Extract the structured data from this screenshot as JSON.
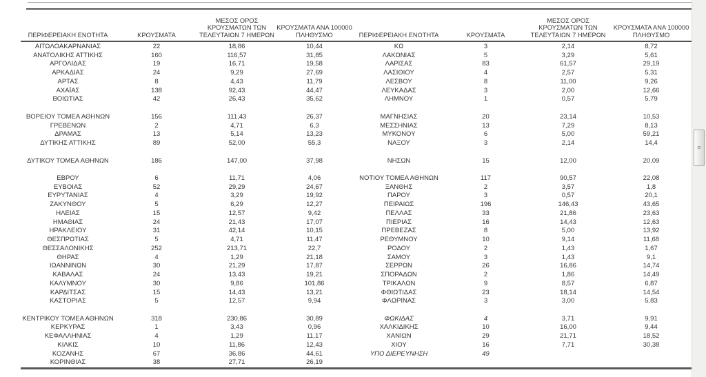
{
  "table": {
    "headers": {
      "region": "ΠΕΡΙΦΕΡΕΙΑΚΗ ΕΝΟΤΗΤΑ",
      "cases": "ΚΡΟΥΣΜΑΤΑ",
      "avg7": "ΜΕΣΟΣ ΟΡΟΣ\nΚΡΟΥΣΜΑΤΩΝ ΤΩΝ\nΤΕΛΕΥΤΑΙΩΝ 7 ΗΜΕΡΩΝ",
      "per100k": "ΚΡΟΥΣΜΑΤΑ ΑΝΑ 100000\nΠΛΗΘΥΣΜΟ"
    },
    "rows": [
      {
        "left": [
          "ΑΙΤΩΛΟΑΚΑΡΝΑΝΙΑΣ",
          "22",
          "18,86",
          "10,44"
        ],
        "right": [
          "ΚΩ",
          "3",
          "2,14",
          "8,72"
        ]
      },
      {
        "left": [
          "ΑΝΑΤΟΛΙΚΗΣ ΑΤΤΙΚΗΣ",
          "160",
          "116,57",
          "31,85"
        ],
        "right": [
          "ΛΑΚΩΝΙΑΣ",
          "5",
          "3,29",
          "5,61"
        ]
      },
      {
        "left": [
          "ΑΡΓΟΛΙΔΑΣ",
          "19",
          "16,71",
          "19,58"
        ],
        "right": [
          "ΛΑΡΙΣΑΣ",
          "83",
          "61,57",
          "29,19"
        ]
      },
      {
        "left": [
          "ΑΡΚΑΔΙΑΣ",
          "24",
          "9,29",
          "27,69"
        ],
        "right": [
          "ΛΑΣΙΘΙΟΥ",
          "4",
          "2,57",
          "5,31"
        ]
      },
      {
        "left": [
          "ΑΡΤΑΣ",
          "8",
          "4,43",
          "11,79"
        ],
        "right": [
          "ΛΕΣΒΟΥ",
          "8",
          "11,00",
          "9,26"
        ]
      },
      {
        "left": [
          "ΑΧΑΪΑΣ",
          "138",
          "92,43",
          "44,47"
        ],
        "right": [
          "ΛΕΥΚΑΔΑΣ",
          "3",
          "2,00",
          "12,66"
        ]
      },
      {
        "left": [
          "ΒΟΙΩΤΙΑΣ",
          "42",
          "26,43",
          "35,62"
        ],
        "right": [
          "ΛΗΜΝΟΥ",
          "1",
          "0,57",
          "5,79"
        ]
      },
      {
        "left": [
          "",
          "",
          "",
          ""
        ],
        "right": [
          "",
          "",
          "",
          ""
        ]
      },
      {
        "left": [
          "ΒΟΡΕΙΟΥ ΤΟΜΕΑ ΑΘΗΝΩΝ",
          "156",
          "111,43",
          "26,37"
        ],
        "right": [
          "ΜΑΓΝΗΣΙΑΣ",
          "20",
          "23,14",
          "10,53"
        ]
      },
      {
        "left": [
          "ΓΡΕΒΕΝΩΝ",
          "2",
          "4,71",
          "6,3"
        ],
        "right": [
          "ΜΕΣΣΗΝΙΑΣ",
          "13",
          "7,29",
          "8,13"
        ]
      },
      {
        "left": [
          "ΔΡΑΜΑΣ",
          "13",
          "5,14",
          "13,23"
        ],
        "right": [
          "ΜΥΚΟΝΟΥ",
          "6",
          "5,00",
          "59,21"
        ]
      },
      {
        "left": [
          "ΔΥΤΙΚΗΣ ΑΤΤΙΚΗΣ",
          "89",
          "52,00",
          "55,3"
        ],
        "right": [
          "ΝΑΞΟΥ",
          "3",
          "2,14",
          "14,4"
        ]
      },
      {
        "left": [
          "",
          "",
          "",
          ""
        ],
        "right": [
          "",
          "",
          "",
          ""
        ]
      },
      {
        "left": [
          "ΔΥΤΙΚΟΥ ΤΟΜΕΑ ΑΘΗΝΩΝ",
          "186",
          "147,00",
          "37,98"
        ],
        "right": [
          "ΝΗΣΩΝ",
          "15",
          "12,00",
          "20,09"
        ]
      },
      {
        "left": [
          "",
          "",
          "",
          ""
        ],
        "right": [
          "",
          "",
          "",
          ""
        ]
      },
      {
        "left": [
          "ΕΒΡΟΥ",
          "6",
          "11,71",
          "4,06"
        ],
        "right": [
          "ΝΟΤΙΟΥ ΤΟΜΕΑ ΑΘΗΝΩΝ",
          "117",
          "90,57",
          "22,08"
        ]
      },
      {
        "left": [
          "ΕΥΒΟΙΑΣ",
          "52",
          "29,29",
          "24,67"
        ],
        "right": [
          "ΞΑΝΘΗΣ",
          "2",
          "3,57",
          "1,8"
        ]
      },
      {
        "left": [
          "ΕΥΡΥΤΑΝΙΑΣ",
          "4",
          "3,29",
          "19,92"
        ],
        "right": [
          "ΠΑΡΟΥ",
          "3",
          "0,57",
          "20,1"
        ]
      },
      {
        "left": [
          "ΖΑΚΥΝΘΟΥ",
          "5",
          "6,29",
          "12,27"
        ],
        "right": [
          "ΠΕΙΡΑΙΩΣ",
          "196",
          "146,43",
          "43,65"
        ]
      },
      {
        "left": [
          "ΗΛΕΙΑΣ",
          "15",
          "12,57",
          "9,42"
        ],
        "right": [
          "ΠΕΛΛΑΣ",
          "33",
          "21,86",
          "23,63"
        ]
      },
      {
        "left": [
          "ΗΜΑΘΙΑΣ",
          "24",
          "21,43",
          "17,07"
        ],
        "right": [
          "ΠΙΕΡΙΑΣ",
          "16",
          "14,43",
          "12,63"
        ]
      },
      {
        "left": [
          "ΗΡΑΚΛΕΙΟΥ",
          "31",
          "42,14",
          "10,15"
        ],
        "right": [
          "ΠΡΕΒΕΖΑΣ",
          "8",
          "5,00",
          "13,92"
        ]
      },
      {
        "left": [
          "ΘΕΣΠΡΩΤΙΑΣ",
          "5",
          "4,71",
          "11,47"
        ],
        "right": [
          "ΡΕΘΥΜΝΟΥ",
          "10",
          "9,14",
          "11,68"
        ]
      },
      {
        "left": [
          "ΘΕΣΣΑΛΟΝΙΚΗΣ",
          "252",
          "213,71",
          "22,7"
        ],
        "right": [
          "ΡΟΔΟΥ",
          "2",
          "1,43",
          "1,67"
        ]
      },
      {
        "left": [
          "ΘΗΡΑΣ",
          "4",
          "1,29",
          "21,18"
        ],
        "right": [
          "ΣΑΜΟΥ",
          "3",
          "1,43",
          "9,1"
        ]
      },
      {
        "left": [
          "ΙΩΑΝΝΙΝΩΝ",
          "30",
          "21,29",
          "17,87"
        ],
        "right": [
          "ΣΕΡΡΩΝ",
          "26",
          "16,86",
          "14,74"
        ]
      },
      {
        "left": [
          "ΚΑΒΑΛΑΣ",
          "24",
          "13,43",
          "19,21"
        ],
        "right": [
          "ΣΠΟΡΑΔΩΝ",
          "2",
          "1,86",
          "14,49"
        ]
      },
      {
        "left": [
          "ΚΑΛΥΜΝΟΥ",
          "30",
          "9,86",
          "101,86"
        ],
        "right": [
          "ΤΡΙΚΑΛΩΝ",
          "9",
          "8,57",
          "6,87"
        ]
      },
      {
        "left": [
          "ΚΑΡΔΙΤΣΑΣ",
          "15",
          "14,43",
          "13,21"
        ],
        "right": [
          "ΦΘΙΩΤΙΔΑΣ",
          "23",
          "18,14",
          "14,54"
        ]
      },
      {
        "left": [
          "ΚΑΣΤΟΡΙΑΣ",
          "5",
          "12,57",
          "9,94"
        ],
        "right": [
          "ΦΛΩΡΙΝΑΣ",
          "3",
          "3,00",
          "5,83"
        ]
      },
      {
        "left": [
          "",
          "",
          "",
          ""
        ],
        "right": [
          "",
          "",
          "",
          ""
        ]
      },
      {
        "left": [
          "ΚΕΝΤΡΙΚΟΥ ΤΟΜΕΑ ΑΘΗΝΩΝ",
          "318",
          "230,86",
          "30,89"
        ],
        "right": [
          "ΦΩΚΙΔΑΣ",
          "4",
          "3,71",
          "9,91"
        ],
        "right_italic": true
      },
      {
        "left": [
          "ΚΕΡΚΥΡΑΣ",
          "1",
          "3,43",
          "0,96"
        ],
        "right": [
          "ΧΑΛΚΙΔΙΚΗΣ",
          "10",
          "16,00",
          "9,44"
        ]
      },
      {
        "left": [
          "ΚΕΦΑΛΛΗΝΙΑΣ",
          "4",
          "1,29",
          "11,17"
        ],
        "right": [
          "ΧΑΝΙΩΝ",
          "29",
          "21,71",
          "18,52"
        ]
      },
      {
        "left": [
          "ΚΙΛΚΙΣ",
          "10",
          "11,86",
          "12,43"
        ],
        "right": [
          "ΧΙΟΥ",
          "16",
          "7,71",
          "30,38"
        ]
      },
      {
        "left": [
          "ΚΟΖΑΝΗΣ",
          "67",
          "36,86",
          "44,61"
        ],
        "right": [
          "ΥΠΟ ΔΙΕΡΕΥΝΗΣΗ",
          "49",
          "",
          ""
        ],
        "right_italic": true
      },
      {
        "left": [
          "ΚΟΡΙΝΘΙΑΣ",
          "38",
          "27,71",
          "26,19"
        ],
        "right": [
          "",
          "",
          "",
          ""
        ]
      }
    ]
  },
  "icons": {
    "scrollbar_grip": "≡"
  }
}
